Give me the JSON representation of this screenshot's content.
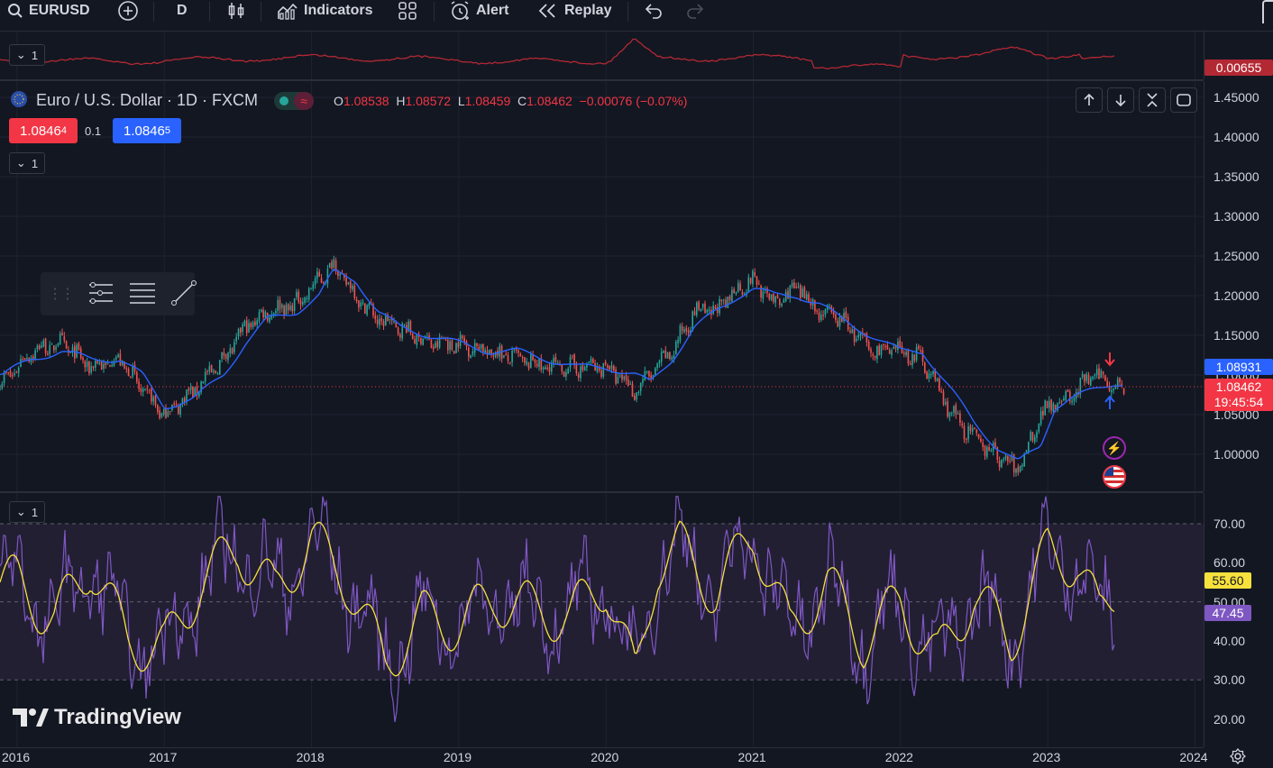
{
  "toolbar": {
    "symbol": "EURUSD",
    "interval": "D",
    "indicators_label": "Indicators",
    "alert_label": "Alert",
    "replay_label": "Replay"
  },
  "top_indicator": {
    "collapse_label": "1",
    "value": "0.00655",
    "color": "#b22833"
  },
  "legend": {
    "title": "Euro / U.S. Dollar · 1D · FXCM",
    "o_label": "O",
    "o_value": "1.08538",
    "h_label": "H",
    "h_value": "1.08572",
    "l_label": "L",
    "l_value": "1.08459",
    "c_label": "C",
    "c_value": "1.08462",
    "change": "−0.00076 (−0.07%)",
    "sell_price_main": "1.0846",
    "sell_price_sup": "4",
    "spread": "0.1",
    "buy_price_main": "1.0846",
    "buy_price_sup": "5",
    "collapse_label": "1"
  },
  "price_axis": {
    "ticks": [
      "1.45000",
      "1.40000",
      "1.35000",
      "1.30000",
      "1.25000",
      "1.20000",
      "1.15000",
      "1.10000",
      "1.05000",
      "1.00000"
    ],
    "ma_value": "1.08931",
    "last_price": "1.08462",
    "countdown": "19:45:54"
  },
  "rsi": {
    "collapse_label": "1",
    "ticks": [
      "70.00",
      "60.00",
      "50.00",
      "40.00",
      "30.00",
      "20.00"
    ],
    "value_ma": "55.60",
    "value_rsi": "47.45"
  },
  "time_axis": [
    "2016",
    "2017",
    "2018",
    "2019",
    "2020",
    "2021",
    "2022",
    "2023",
    "2024"
  ],
  "watermark": "TradingView",
  "colors": {
    "background": "#131722",
    "up": "#26a69a",
    "down": "#ef5350",
    "ma_line": "#2962ff",
    "rsi_line": "#7e57c2",
    "rsi_ma": "#f7e13c",
    "rsi_band": "#221f33",
    "sell": "#f23645",
    "buy": "#2962ff"
  },
  "chart_data": [
    {
      "type": "line",
      "title": "Euro / U.S. Dollar · 1D · FXCM",
      "x": [
        2015.6,
        2015.9,
        2016.1,
        2016.3,
        2016.5,
        2016.7,
        2016.85,
        2017.0,
        2017.2,
        2017.4,
        2017.55,
        2017.7,
        2017.9,
        2018.05,
        2018.15,
        2018.3,
        2018.45,
        2018.6,
        2018.8,
        2019.0,
        2019.2,
        2019.4,
        2019.6,
        2019.8,
        2020.0,
        2020.2,
        2020.3,
        2020.45,
        2020.6,
        2020.75,
        2020.9,
        2021.0,
        2021.15,
        2021.3,
        2021.45,
        2021.6,
        2021.8,
        2022.0,
        2022.15,
        2022.35,
        2022.5,
        2022.65,
        2022.8,
        2022.95,
        2023.05,
        2023.15,
        2023.3,
        2023.45,
        2023.55
      ],
      "series": [
        {
          "values": [
            1.11,
            1.09,
            1.13,
            1.14,
            1.11,
            1.12,
            1.08,
            1.05,
            1.08,
            1.12,
            1.16,
            1.18,
            1.19,
            1.22,
            1.24,
            1.2,
            1.17,
            1.16,
            1.14,
            1.14,
            1.13,
            1.12,
            1.11,
            1.11,
            1.11,
            1.08,
            1.1,
            1.13,
            1.18,
            1.18,
            1.21,
            1.22,
            1.19,
            1.21,
            1.18,
            1.17,
            1.13,
            1.13,
            1.12,
            1.05,
            1.02,
            1.0,
            0.98,
            1.05,
            1.07,
            1.07,
            1.1,
            1.09,
            1.08
          ]
        },
        {
          "values": [
            1.11,
            1.1,
            1.12,
            1.13,
            1.12,
            1.12,
            1.1,
            1.06,
            1.07,
            1.1,
            1.14,
            1.17,
            1.18,
            1.2,
            1.23,
            1.22,
            1.18,
            1.16,
            1.15,
            1.14,
            1.13,
            1.13,
            1.12,
            1.11,
            1.11,
            1.1,
            1.09,
            1.12,
            1.16,
            1.18,
            1.2,
            1.21,
            1.2,
            1.2,
            1.19,
            1.17,
            1.15,
            1.13,
            1.13,
            1.08,
            1.04,
            1.01,
            0.99,
            1.01,
            1.06,
            1.07,
            1.08,
            1.09,
            1.09
          ]
        }
      ],
      "ylim": [
        0.97,
        1.47
      ]
    },
    {
      "type": "line",
      "x": [
        2016.0,
        2016.25,
        2016.5,
        2016.75,
        2017.0,
        2017.25,
        2017.5,
        2017.75,
        2018.0,
        2018.25,
        2018.5,
        2018.75,
        2019.0,
        2019.25,
        2019.5,
        2019.75,
        2020.0,
        2020.2,
        2020.35,
        2020.5,
        2020.75,
        2021.0,
        2021.25,
        2021.5,
        2021.75,
        2022.0,
        2022.25,
        2022.5,
        2022.75,
        2023.0,
        2023.2,
        2023.35,
        2023.5
      ],
      "series": [
        {
          "values": [
            55,
            45,
            60,
            40,
            38,
            55,
            64,
            52,
            66,
            55,
            34,
            46,
            44,
            51,
            48,
            46,
            55,
            30,
            60,
            64,
            52,
            68,
            42,
            55,
            40,
            50,
            35,
            52,
            40,
            63,
            60,
            46,
            56
          ]
        }
      ],
      "ylim": [
        16,
        76
      ]
    }
  ]
}
